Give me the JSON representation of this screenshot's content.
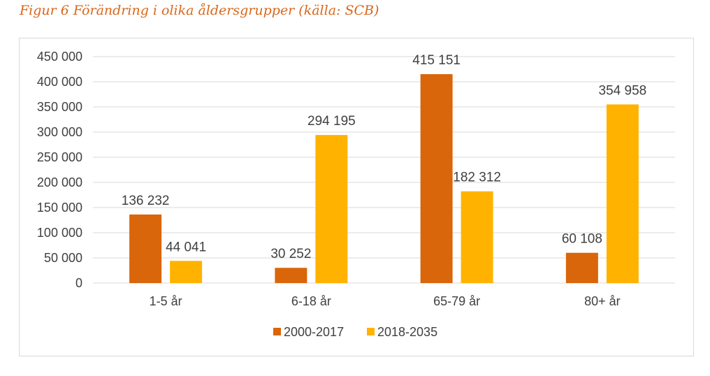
{
  "figure": {
    "title": "Figur 6 Förändring i olika åldersgrupper (källa: SCB)"
  },
  "colors": {
    "series_1": "#d9660a",
    "series_2": "#ffb300",
    "grid": "#d9d9d9",
    "text": "#404040",
    "title": "#d9661a"
  },
  "chart_data": {
    "type": "bar",
    "title": "",
    "xlabel": "",
    "ylabel": "",
    "categories": [
      "1-5 år",
      "6-18 år",
      "65-79 år",
      "80+ år"
    ],
    "series": [
      {
        "name": "2000-2017",
        "values": [
          136232,
          30252,
          415151,
          60108
        ],
        "labels": [
          "136 232",
          "30 252",
          "415 151",
          "60 108"
        ]
      },
      {
        "name": "2018-2035",
        "values": [
          44041,
          294195,
          182312,
          354958
        ],
        "labels": [
          "44 041",
          "294 195",
          "182 312",
          "354 958"
        ]
      }
    ],
    "ylim": [
      0,
      450000
    ],
    "yticks": [
      0,
      50000,
      100000,
      150000,
      200000,
      250000,
      300000,
      350000,
      400000,
      450000
    ],
    "ytick_labels": [
      "0",
      "50 000",
      "100 000",
      "150 000",
      "200 000",
      "250 000",
      "300 000",
      "350 000",
      "400 000",
      "450 000"
    ],
    "grid": true,
    "legend_position": "bottom"
  }
}
